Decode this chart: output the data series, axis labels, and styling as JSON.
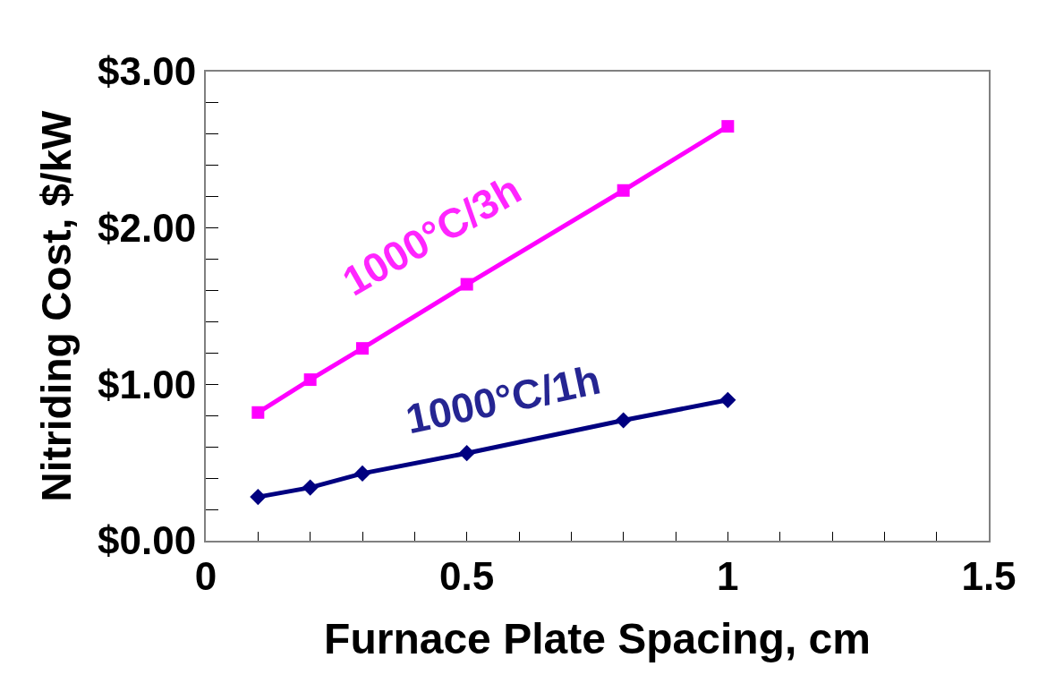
{
  "chart_data": {
    "type": "line",
    "xlabel": "Furnace Plate Spacing, cm",
    "ylabel": "Nitriding Cost, $/kW",
    "x": [
      0.1,
      0.2,
      0.3,
      0.5,
      0.8,
      1.0
    ],
    "series": [
      {
        "name": "1000°C/3h",
        "color": "#ff00ff",
        "marker": "square",
        "values": [
          0.82,
          1.03,
          1.23,
          1.64,
          2.24,
          2.65
        ]
      },
      {
        "name": "1000°C/1h",
        "color": "#000080",
        "marker": "diamond",
        "values": [
          0.28,
          0.34,
          0.43,
          0.56,
          0.77,
          0.9
        ]
      }
    ],
    "xlim": [
      0,
      1.5
    ],
    "xticks": [
      0,
      {
        "value": 0.1,
        "label": null
      },
      {
        "value": 0.2,
        "label": null
      },
      {
        "value": 0.3,
        "label": null
      },
      {
        "value": 0.4,
        "label": null
      },
      0.5,
      {
        "value": 0.6,
        "label": null
      },
      {
        "value": 0.7,
        "label": null
      },
      {
        "value": 0.8,
        "label": null
      },
      {
        "value": 0.9,
        "label": null
      },
      1,
      {
        "value": 1.1,
        "label": null
      },
      {
        "value": 1.2,
        "label": null
      },
      {
        "value": 1.3,
        "label": null
      },
      {
        "value": 1.4,
        "label": null
      },
      1.5
    ],
    "ylim": [
      0,
      3
    ],
    "yticks": [
      {
        "value": 0,
        "label": "$0.00"
      },
      {
        "value": 0.2,
        "label": null
      },
      {
        "value": 0.4,
        "label": null
      },
      {
        "value": 0.6,
        "label": null
      },
      {
        "value": 0.8,
        "label": null
      },
      {
        "value": 1,
        "label": "$1.00"
      },
      {
        "value": 1.2,
        "label": null
      },
      {
        "value": 1.4,
        "label": null
      },
      {
        "value": 1.6,
        "label": null
      },
      {
        "value": 1.8,
        "label": null
      },
      {
        "value": 2,
        "label": "$2.00"
      },
      {
        "value": 2.2,
        "label": null
      },
      {
        "value": 2.4,
        "label": null
      },
      {
        "value": 2.6,
        "label": null
      },
      {
        "value": 2.8,
        "label": null
      },
      {
        "value": 3,
        "label": "$3.00"
      }
    ],
    "legend": false,
    "line_style": "solid"
  }
}
